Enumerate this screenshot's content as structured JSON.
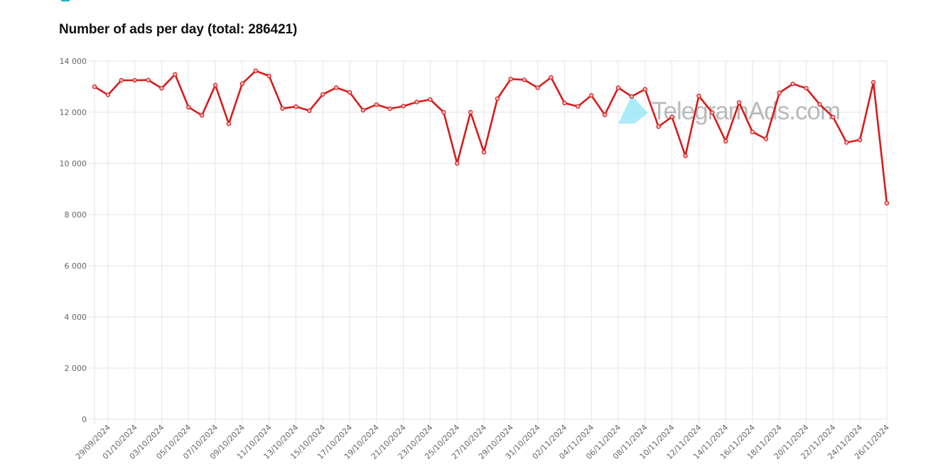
{
  "page": {
    "title": "Number of ads per day (total: 286421)",
    "watermark_text": "TelegramAds.com",
    "watermark_icon": "paper-plane-icon"
  },
  "colors": {
    "line": "#d81b1b",
    "grid": "#e6e6e6",
    "axis_text": "#666666",
    "watermark_icon": "#8fe6f7",
    "legend_swatch": "#17b3c6"
  },
  "chart_data": {
    "type": "line",
    "title": "Number of ads per day (total: 286421)",
    "xlabel": "",
    "ylabel": "",
    "ylim": [
      0,
      14000
    ],
    "yticks": [
      0,
      2000,
      4000,
      6000,
      8000,
      10000,
      12000,
      14000
    ],
    "ytick_labels": [
      "0",
      "2 000",
      "4 000",
      "6 000",
      "8 000",
      "10 000",
      "12 000",
      "14 000"
    ],
    "grid": true,
    "categories": [
      "28/09/2024",
      "29/09/2024",
      "30/09/2024",
      "01/10/2024",
      "02/10/2024",
      "03/10/2024",
      "04/10/2024",
      "05/10/2024",
      "06/10/2024",
      "07/10/2024",
      "08/10/2024",
      "09/10/2024",
      "10/10/2024",
      "11/10/2024",
      "12/10/2024",
      "13/10/2024",
      "14/10/2024",
      "15/10/2024",
      "16/10/2024",
      "17/10/2024",
      "18/10/2024",
      "19/10/2024",
      "20/10/2024",
      "21/10/2024",
      "22/10/2024",
      "23/10/2024",
      "24/10/2024",
      "25/10/2024",
      "26/10/2024",
      "27/10/2024",
      "28/10/2024",
      "29/10/2024",
      "30/10/2024",
      "31/10/2024",
      "01/11/2024",
      "02/11/2024",
      "03/11/2024",
      "04/11/2024",
      "05/11/2024",
      "06/11/2024",
      "07/11/2024",
      "08/11/2024",
      "09/11/2024",
      "10/11/2024",
      "11/11/2024",
      "12/11/2024",
      "13/11/2024",
      "14/11/2024",
      "15/11/2024",
      "16/11/2024",
      "17/11/2024",
      "18/11/2024",
      "19/11/2024",
      "20/11/2024",
      "21/11/2024",
      "22/11/2024",
      "23/11/2024",
      "24/11/2024",
      "25/11/2024",
      "26/11/2024"
    ],
    "visible_x_labels": [
      "29/09/2024",
      "01/10/2024",
      "03/10/2024",
      "05/10/2024",
      "07/10/2024",
      "09/10/2024",
      "11/10/2024",
      "13/10/2024",
      "15/10/2024",
      "17/10/2024",
      "19/10/2024",
      "21/10/2024",
      "23/10/2024",
      "25/10/2024",
      "27/10/2024",
      "29/10/2024",
      "31/10/2024",
      "02/11/2024",
      "04/11/2024",
      "06/11/2024",
      "08/11/2024",
      "10/11/2024",
      "12/11/2024",
      "14/11/2024",
      "16/11/2024",
      "18/11/2024",
      "20/11/2024",
      "22/11/2024",
      "24/11/2024",
      "26/11/2024"
    ],
    "series": [
      {
        "values": [
          13000,
          12680,
          13250,
          13250,
          13260,
          12940,
          13480,
          12200,
          11880,
          13060,
          11550,
          13120,
          13620,
          13420,
          12150,
          12220,
          12060,
          12700,
          12960,
          12780,
          12080,
          12300,
          12140,
          12240,
          12400,
          12500,
          12000,
          10000,
          12000,
          10440,
          12530,
          13300,
          13270,
          12960,
          13360,
          12360,
          12230,
          12660,
          11900,
          12960,
          12620,
          12900,
          11440,
          11820,
          10300,
          12640,
          11990,
          10870,
          12380,
          11230,
          10960,
          12760,
          13110,
          12940,
          12310,
          11810,
          10820,
          10920,
          13170,
          8450
        ]
      }
    ]
  }
}
